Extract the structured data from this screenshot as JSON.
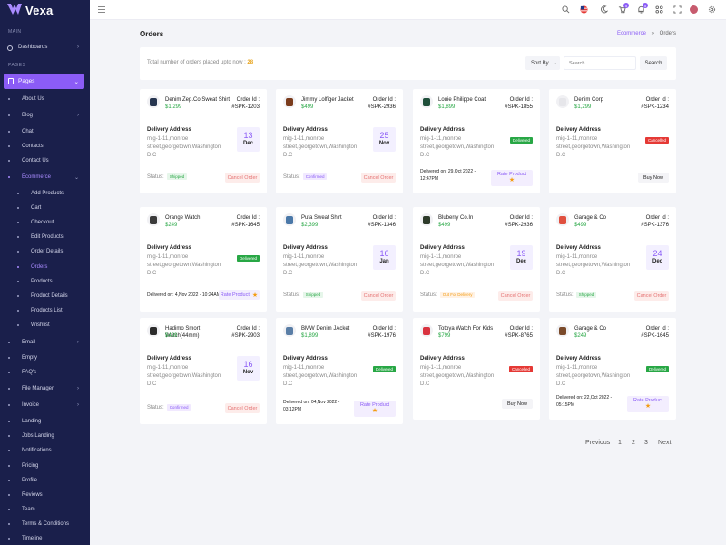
{
  "app": {
    "name": "Vexa"
  },
  "sidebar": {
    "main_label": "MAIN",
    "pages_label": "PAGES",
    "dashboards": "Dashboards",
    "pages": "Pages",
    "items": [
      "About Us",
      "Blog",
      "Chat",
      "Contacts",
      "Contact Us",
      "Ecommerce",
      "Add Products",
      "Cart",
      "Checkout",
      "Edit Products",
      "Order Details",
      "Orders",
      "Products",
      "Product Details",
      "Products List",
      "Wishlist",
      "Email",
      "Empty",
      "FAQ's",
      "File Manager",
      "Invoice",
      "Landing",
      "Jobs Landing",
      "Notifications",
      "Pricing",
      "Profile",
      "Reviews",
      "Team",
      "Terms & Conditions",
      "Timeline"
    ]
  },
  "topbar": {
    "cart_badge": "5",
    "notif_badge": "5"
  },
  "header": {
    "title": "Orders",
    "breadcrumb_link": "Ecommerce",
    "breadcrumb_sep": "»",
    "breadcrumb_current": "Orders"
  },
  "summary": {
    "text": "Total number of orders placed upto now : ",
    "count": "28",
    "sort_label": "Sort By",
    "search_placeholder": "Search",
    "search_button": "Search"
  },
  "labels": {
    "order_id": "Order Id :",
    "delivery_address": "Delivery Address",
    "status": "Status:",
    "cancel_order": "Cancel Order",
    "buy_now": "Buy Now",
    "rate_product": "Rate Product",
    "star": "★",
    "delivered_on": "Delivered on:"
  },
  "orders": [
    {
      "name": "Denim Zep.Co Sweat Shirt",
      "price": "$1,299",
      "id": "#SPK-1203",
      "address": "mig-1-11,monroe street,georgetown,Washington D.C",
      "day": "13",
      "month": "Dec",
      "status": "Shipped"
    },
    {
      "name": "Jimmy Lolfiger Jacket",
      "price": "$499",
      "id": "#SPK-2936",
      "address": "mig-1-11,monroe street,georgetown,Washington D.C",
      "day": "25",
      "month": "Nov",
      "status": "Confirmed"
    },
    {
      "name": "Louie Philippe Coat",
      "price": "$1,899",
      "id": "#SPK-1855",
      "address": "mig-1-11,monroe street,georgetown,Washington D.C",
      "pill": "Delivered",
      "delivered_date": "29,Oct 2022 - 12:47PM"
    },
    {
      "name": "Denim Corp",
      "price": "$1,299",
      "id": "#SPK-1234",
      "address": "mig-1-11,monroe street,georgetown,Washington D.C",
      "pill": "Cancelled"
    },
    {
      "name": "Orange Watch",
      "price": "$249",
      "id": "#SPK-1645",
      "address": "mig-1-11,monroe street,georgetown,Washington D.C",
      "pill": "Delivered",
      "delivered_date": "4,Nov 2022 - 10:24AM"
    },
    {
      "name": "Pufa Sweat Shirt",
      "price": "$2,399",
      "id": "#SPK-1346",
      "address": "mig-1-11,monroe street,georgetown,Washington D.C",
      "day": "16",
      "month": "Jan",
      "status": "Shipped"
    },
    {
      "name": "Bluberry Co.In",
      "price": "$499",
      "id": "#SPK-2936",
      "address": "mig-1-11,monroe street,georgetown,Washington D.C",
      "day": "19",
      "month": "Dec",
      "status": "Out For Delivery"
    },
    {
      "name": "Garage & Co",
      "price": "$499",
      "id": "#SPK-1376",
      "address": "mig-1-11,monroe street,georgetown,Washington D.C",
      "day": "24",
      "month": "Dec",
      "status": "Shipped"
    },
    {
      "name": "Hadimo Smort Watch(44mm)",
      "price": "$499",
      "id": "#SPK-2903",
      "address": "mig-1-11,monroe street,georgetown,Washington D.C",
      "day": "16",
      "month": "Nov",
      "status": "Confirmed"
    },
    {
      "name": "BMW Denim JAcket",
      "price": "$1,899",
      "id": "#SPK-1976",
      "address": "mig-1-11,monroe street,georgetown,Washington D.C",
      "pill": "Delivered",
      "delivered_date": "04,Nov 2022 - 03:12PM"
    },
    {
      "name": "Totoya Watch For Kids",
      "price": "$799",
      "id": "#SPK-8765",
      "address": "mig-1-11,monroe street,georgetown,Washington D.C",
      "pill": "Cancelled"
    },
    {
      "name": "Garage & Co",
      "price": "$249",
      "id": "#SPK-1645",
      "address": "mig-1-11,monroe street,georgetown,Washington D.C",
      "pill": "Delivered",
      "delivered_date": "22,Oct 2022 - 05:15PM"
    }
  ],
  "pagination": {
    "previous": "Previous",
    "p1": "1",
    "p2": "2",
    "p3": "3",
    "next": "Next"
  },
  "colors": {
    "accent": "#8b5cf6",
    "sidebar": "#1a1f4b",
    "success": "#28a745",
    "danger": "#e53935"
  }
}
